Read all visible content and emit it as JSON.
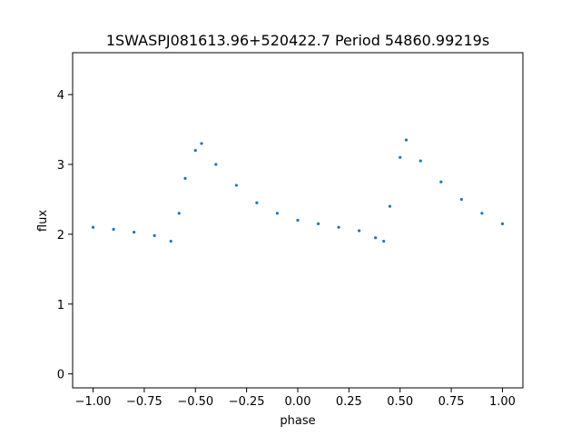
{
  "chart_data": {
    "type": "scatter",
    "title": "1SWASPJ081613.96+520422.7 Period 54860.99219s",
    "xlabel": "phase",
    "ylabel": "flux",
    "xlim": [
      -1.1,
      1.1
    ],
    "ylim": [
      -0.2,
      4.6
    ],
    "x_ticks": [
      -1.0,
      -0.75,
      -0.5,
      -0.25,
      0.0,
      0.25,
      0.5,
      0.75,
      1.0
    ],
    "x_tick_labels": [
      "−1.00",
      "−0.75",
      "−0.50",
      "−0.25",
      "0.00",
      "0.25",
      "0.50",
      "0.75",
      "1.00"
    ],
    "y_ticks": [
      0,
      1,
      2,
      3,
      4
    ],
    "y_tick_labels": [
      "0",
      "1",
      "2",
      "3",
      "4"
    ],
    "grid": false,
    "legend": "none",
    "point_color": "#1f77b4",
    "series": [
      {
        "x": [
          -1.0,
          -0.9,
          -0.8,
          -0.7,
          -0.62,
          -0.58,
          -0.55,
          -0.5,
          -0.47,
          -0.4,
          -0.3,
          -0.2,
          -0.1,
          0.0,
          0.1,
          0.2,
          0.3,
          0.38,
          0.42,
          0.45,
          0.5,
          0.53,
          0.6,
          0.7,
          0.8,
          0.9,
          1.0
        ],
        "y": [
          2.1,
          2.07,
          2.03,
          1.98,
          1.9,
          2.3,
          2.8,
          3.2,
          3.3,
          3.0,
          2.7,
          2.45,
          2.3,
          2.2,
          2.15,
          2.1,
          2.05,
          1.95,
          1.9,
          2.4,
          3.1,
          3.35,
          3.05,
          2.75,
          2.5,
          2.3,
          2.15
        ]
      }
    ]
  }
}
